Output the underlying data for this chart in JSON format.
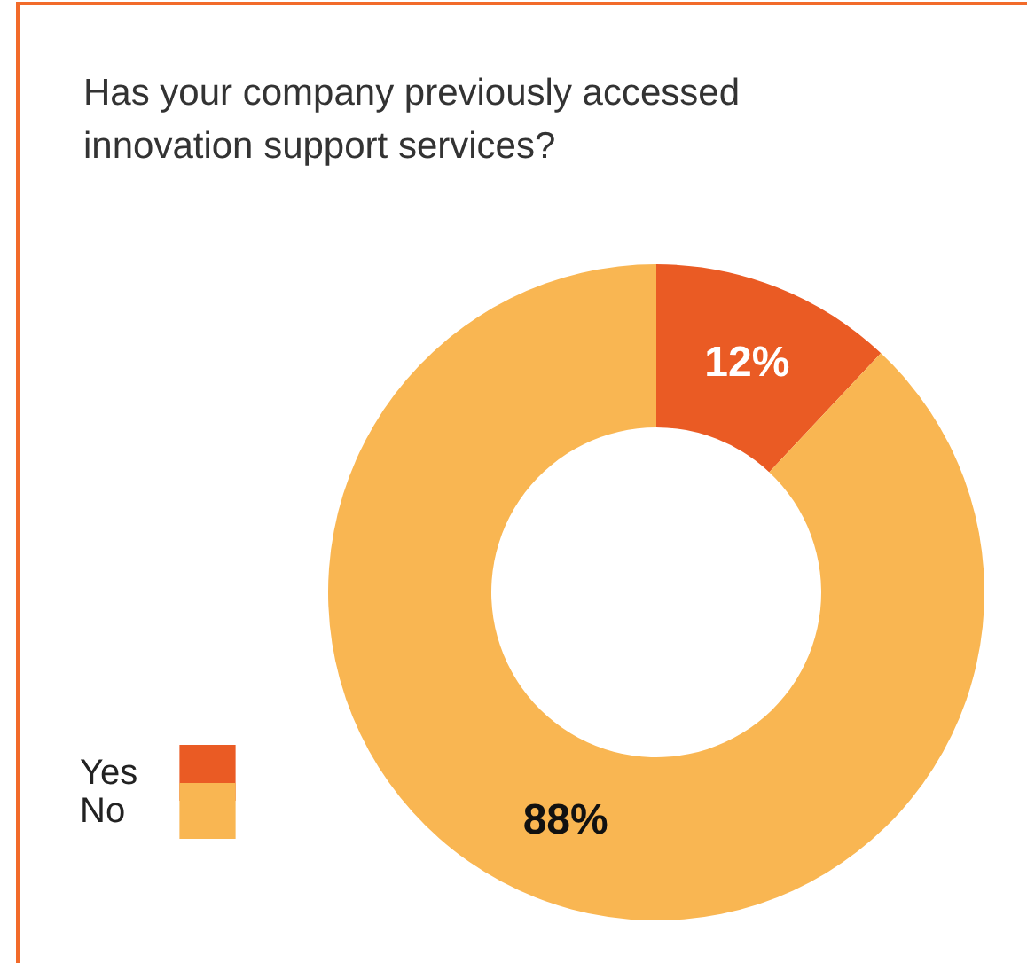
{
  "chart_data": {
    "type": "donut",
    "title": "Has your company previously accessed innovation support services?",
    "categories": [
      "Yes",
      "No"
    ],
    "values": [
      12,
      88
    ],
    "colors": [
      "#ea5b24",
      "#f9b652"
    ],
    "value_labels": [
      "12%",
      "88%"
    ],
    "legend": "bottom left"
  }
}
